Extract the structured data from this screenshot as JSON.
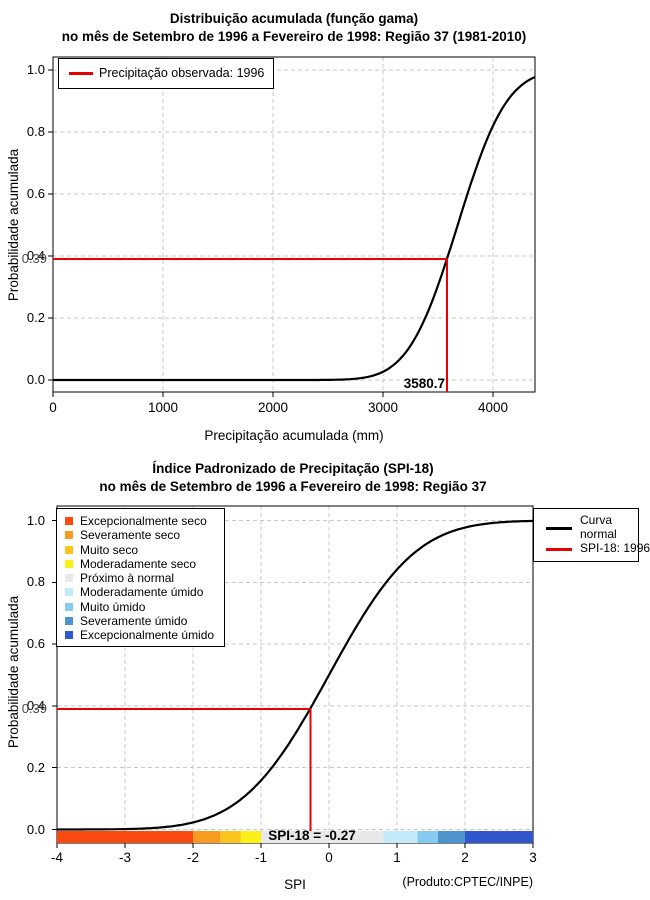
{
  "window": {
    "background": "#FFFFFF"
  },
  "styles": {
    "curve_color": "#000000",
    "highlight_red": "#E80000",
    "grid_color": "#C9C9C9",
    "border_grid_color": "#555555",
    "overlay_text_color": "#4A4A4A"
  },
  "chart_data": [
    {
      "type": "line",
      "title": "Distribuição acumulada (função gama)",
      "subtitle": "no mês de Setembro de 1996 a Fevereiro de 1998: Região 37 (1981-2010)",
      "xlabel": "Precipitação acumulada (mm)",
      "ylabel": "Probabilidade acumulada",
      "xlim": [
        0,
        4383
      ],
      "ylim": [
        0,
        1
      ],
      "grid": true,
      "legend_position": "top-left",
      "x_ticks": [
        0,
        1000,
        2000,
        3000,
        4000
      ],
      "x_tick_labels": [
        "0",
        "1000",
        "2000",
        "3000",
        "4000"
      ],
      "y_ticks": [
        0.0,
        0.2,
        0.4,
        0.6,
        0.8,
        1.0
      ],
      "y_tick_labels": [
        "0.0",
        "0.2",
        "0.4",
        "0.6",
        "0.8",
        "1.0"
      ],
      "series": [
        {
          "name": "Distribuição acumulada (função gama)",
          "color": "#000000",
          "model": "normal_cdf_approx",
          "mu": 3679,
          "sigma": 351,
          "points": [
            [
              0,
              0
            ],
            [
              500,
              0
            ],
            [
              1000,
              0
            ],
            [
              1500,
              0.001
            ],
            [
              2000,
              0.001
            ],
            [
              2500,
              0.002
            ],
            [
              2800,
              0.006
            ],
            [
              3000,
              0.027
            ],
            [
              3200,
              0.086
            ],
            [
              3400,
              0.213
            ],
            [
              3580.7,
              0.39
            ],
            [
              3700,
              0.52
            ],
            [
              3800,
              0.634
            ],
            [
              3900,
              0.736
            ],
            [
              4000,
              0.82
            ],
            [
              4100,
              0.885
            ],
            [
              4200,
              0.931
            ],
            [
              4300,
              0.961
            ],
            [
              4383,
              0.977
            ]
          ]
        }
      ],
      "crosshair": {
        "x": 3580.7,
        "y": 0.39,
        "x_label": "3580.7",
        "y_label": "0.39",
        "color": "#E80000",
        "label": "Precipitação observada: 1996"
      }
    },
    {
      "type": "line",
      "title": "Índice Padronizado de Precipitação (SPI-18)",
      "subtitle": "no mês de Setembro de 1996 a Fevereiro de 1998: Região 37",
      "xlabel": "SPI",
      "ylabel": "Probabilidade acumulada",
      "xlim": [
        -4,
        3
      ],
      "ylim": [
        0,
        1
      ],
      "grid": true,
      "legend_positions": {
        "categories": "top-left",
        "series": "top-right"
      },
      "x_ticks": [
        -4,
        -3,
        -2,
        -1,
        0,
        1,
        2,
        3
      ],
      "x_tick_labels": [
        "-4",
        "-3",
        "-2",
        "-1",
        "0",
        "1",
        "2",
        "3"
      ],
      "y_ticks": [
        0.0,
        0.2,
        0.4,
        0.6,
        0.8,
        1.0
      ],
      "y_tick_labels": [
        "0.0",
        "0.2",
        "0.4",
        "0.6",
        "0.8",
        "1.0"
      ],
      "series": [
        {
          "name": "Curva normal",
          "color": "#000000",
          "model": "normal_cdf_approx",
          "mu": 0,
          "sigma": 1,
          "points": [
            [
              -4,
              0
            ],
            [
              -3.5,
              0.0002
            ],
            [
              -3,
              0.0013
            ],
            [
              -2.5,
              0.0062
            ],
            [
              -2,
              0.0228
            ],
            [
              -1.5,
              0.0668
            ],
            [
              -1,
              0.1587
            ],
            [
              -0.5,
              0.3085
            ],
            [
              -0.27,
              0.3936
            ],
            [
              0,
              0.5
            ],
            [
              0.5,
              0.6915
            ],
            [
              1,
              0.8413
            ],
            [
              1.5,
              0.9332
            ],
            [
              2,
              0.9772
            ],
            [
              2.5,
              0.9938
            ],
            [
              3,
              0.9987
            ]
          ]
        }
      ],
      "crosshair": {
        "x": -0.27,
        "y": 0.39,
        "y_label": "0.39",
        "color": "#E80000",
        "label": "SPI-18: 1996"
      },
      "legend_right": {
        "series_label_line1": "Curva",
        "series_label_line2": "normal",
        "observed_label": "SPI-18: 1996"
      },
      "categories": [
        {
          "label": "Excepcionalmente seco",
          "color": "#FA4A12",
          "range": [
            -4,
            -2
          ]
        },
        {
          "label": "Severamente seco",
          "color": "#F99B20",
          "range": [
            -2,
            -1.6
          ]
        },
        {
          "label": "Muito seco",
          "color": "#FAC31E",
          "range": [
            -1.6,
            -1.3
          ]
        },
        {
          "label": "Moderadamente seco",
          "color": "#FBF116",
          "range": [
            -1.3,
            -1.0
          ]
        },
        {
          "label": "Próximo à normal",
          "color": "#E8E8E8",
          "range": [
            -1.0,
            0.8
          ]
        },
        {
          "label": "Moderadamente úmido",
          "color": "#C2EBFA",
          "range": [
            0.8,
            1.3
          ]
        },
        {
          "label": "Muito úmido",
          "color": "#85CAF0",
          "range": [
            1.3,
            1.6
          ]
        },
        {
          "label": "Severamente úmido",
          "color": "#4D94CC",
          "range": [
            1.6,
            2.0
          ]
        },
        {
          "label": "Excepcionalmente úmido",
          "color": "#3056CB",
          "range": [
            2.0,
            3.0
          ]
        }
      ],
      "bar_annotation": "SPI-18 = -0.27",
      "credit": "(Produto:CPTEC/INPE)"
    }
  ]
}
